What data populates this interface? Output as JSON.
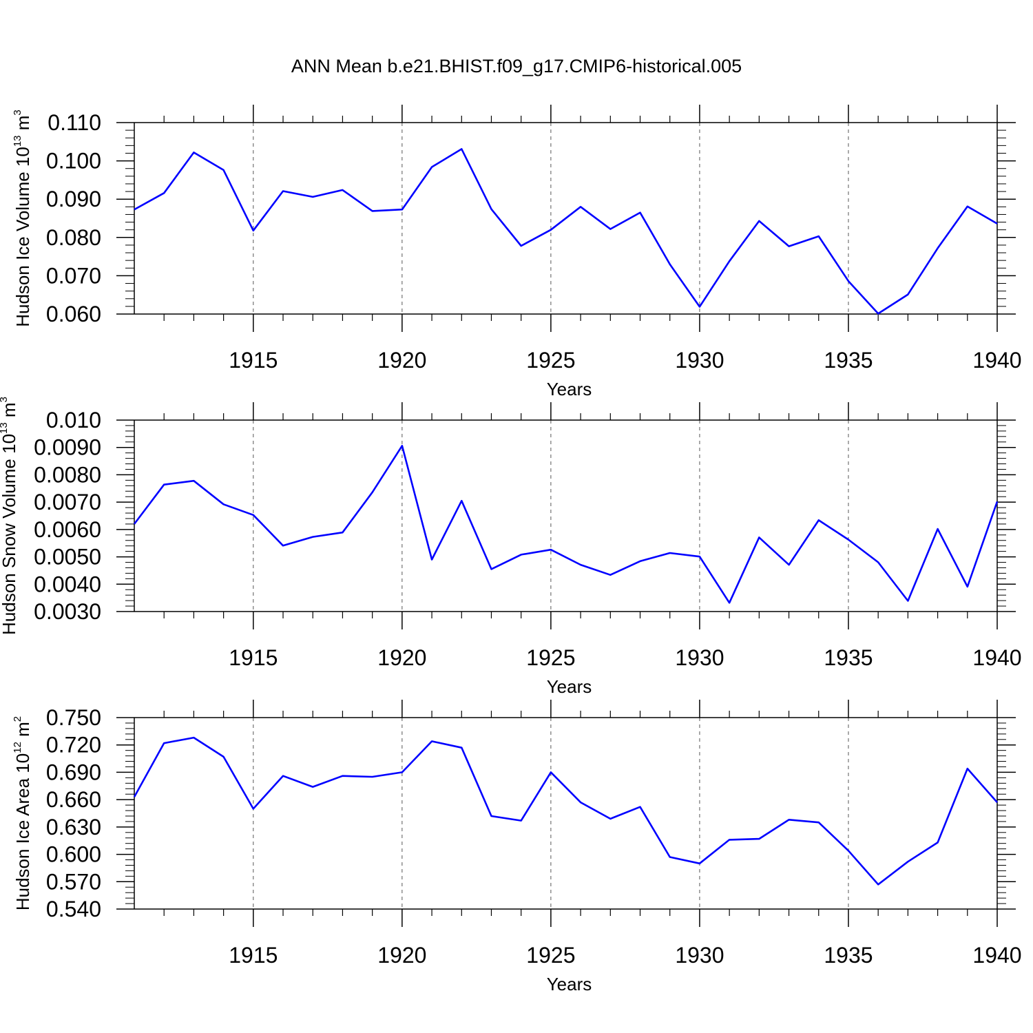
{
  "title": "ANN Mean b.e21.BHIST.f09_g17.CMIP6-historical.005",
  "colors": {
    "line": "#0000ff",
    "axis": "#000000",
    "grid": "#555555"
  },
  "chart_data": [
    {
      "type": "line",
      "xlabel": "Years",
      "ylabel_parts": {
        "main": "Hudson Ice Volume 10",
        "exp": "13",
        "unit": " m",
        "unit_exp": "3"
      },
      "xlim": [
        1911,
        1940
      ],
      "ylim": [
        0.06,
        0.11
      ],
      "xticks": [
        1915,
        1920,
        1925,
        1930,
        1935,
        1940
      ],
      "yticks": [
        0.06,
        0.07,
        0.08,
        0.09,
        0.1,
        0.11
      ],
      "ytick_labels": [
        "0.060",
        "0.070",
        "0.080",
        "0.090",
        "0.100",
        "0.110"
      ],
      "grid": "x dashed",
      "x": [
        1911,
        1912,
        1913,
        1914,
        1915,
        1916,
        1917,
        1918,
        1919,
        1920,
        1921,
        1922,
        1923,
        1924,
        1925,
        1926,
        1927,
        1928,
        1929,
        1930,
        1931,
        1932,
        1933,
        1934,
        1935,
        1936,
        1937,
        1938,
        1939,
        1940
      ],
      "series": [
        {
          "values": [
            0.0873,
            0.0916,
            0.1022,
            0.0976,
            0.0818,
            0.0921,
            0.0906,
            0.0924,
            0.0869,
            0.0873,
            0.0984,
            0.1031,
            0.0874,
            0.0778,
            0.082,
            0.088,
            0.0822,
            0.0865,
            0.073,
            0.0619,
            0.0738,
            0.0843,
            0.0777,
            0.0803,
            0.0686,
            0.0601,
            0.0651,
            0.0772,
            0.0881,
            0.0836
          ]
        }
      ]
    },
    {
      "type": "line",
      "xlabel": "Years",
      "ylabel_parts": {
        "main": "Hudson Snow Volume 10",
        "exp": "13",
        "unit": " m",
        "unit_exp": "3"
      },
      "xlim": [
        1911,
        1940
      ],
      "ylim": [
        0.003,
        0.01
      ],
      "xticks": [
        1915,
        1920,
        1925,
        1930,
        1935,
        1940
      ],
      "yticks": [
        0.003,
        0.004,
        0.005,
        0.006,
        0.007,
        0.008,
        0.009,
        0.01
      ],
      "ytick_labels": [
        "0.0030",
        "0.0040",
        "0.0050",
        "0.0060",
        "0.0070",
        "0.0080",
        "0.0090",
        "0.010"
      ],
      "grid": "x dashed",
      "x": [
        1911,
        1912,
        1913,
        1914,
        1915,
        1916,
        1917,
        1918,
        1919,
        1920,
        1921,
        1922,
        1923,
        1924,
        1925,
        1926,
        1927,
        1928,
        1929,
        1930,
        1931,
        1932,
        1933,
        1934,
        1935,
        1936,
        1937,
        1938,
        1939,
        1940
      ],
      "series": [
        {
          "values": [
            0.0062,
            0.00764,
            0.00778,
            0.00692,
            0.00653,
            0.00541,
            0.00573,
            0.00589,
            0.00736,
            0.00906,
            0.0049,
            0.00705,
            0.00455,
            0.00508,
            0.00526,
            0.00471,
            0.00434,
            0.00484,
            0.00514,
            0.00501,
            0.00332,
            0.00571,
            0.00471,
            0.00634,
            0.00563,
            0.0048,
            0.00339,
            0.00602,
            0.00391,
            0.00702
          ]
        }
      ]
    },
    {
      "type": "line",
      "xlabel": "Years",
      "ylabel_parts": {
        "main": "Hudson Ice Area 10",
        "exp": "12",
        "unit": " m",
        "unit_exp": "2"
      },
      "xlim": [
        1911,
        1940
      ],
      "ylim": [
        0.54,
        0.75
      ],
      "xticks": [
        1915,
        1920,
        1925,
        1930,
        1935,
        1940
      ],
      "yticks": [
        0.54,
        0.57,
        0.6,
        0.63,
        0.66,
        0.69,
        0.72,
        0.75
      ],
      "ytick_labels": [
        "0.540",
        "0.570",
        "0.600",
        "0.630",
        "0.660",
        "0.690",
        "0.720",
        "0.750"
      ],
      "grid": "x dashed",
      "x": [
        1911,
        1912,
        1913,
        1914,
        1915,
        1916,
        1917,
        1918,
        1919,
        1920,
        1921,
        1922,
        1923,
        1924,
        1925,
        1926,
        1927,
        1928,
        1929,
        1930,
        1931,
        1932,
        1933,
        1934,
        1935,
        1936,
        1937,
        1938,
        1939,
        1940
      ],
      "series": [
        {
          "values": [
            0.663,
            0.722,
            0.728,
            0.707,
            0.65,
            0.686,
            0.674,
            0.686,
            0.685,
            0.69,
            0.724,
            0.717,
            0.642,
            0.637,
            0.69,
            0.657,
            0.639,
            0.652,
            0.597,
            0.59,
            0.616,
            0.617,
            0.638,
            0.635,
            0.604,
            0.567,
            0.592,
            0.613,
            0.694,
            0.657
          ]
        }
      ]
    }
  ]
}
